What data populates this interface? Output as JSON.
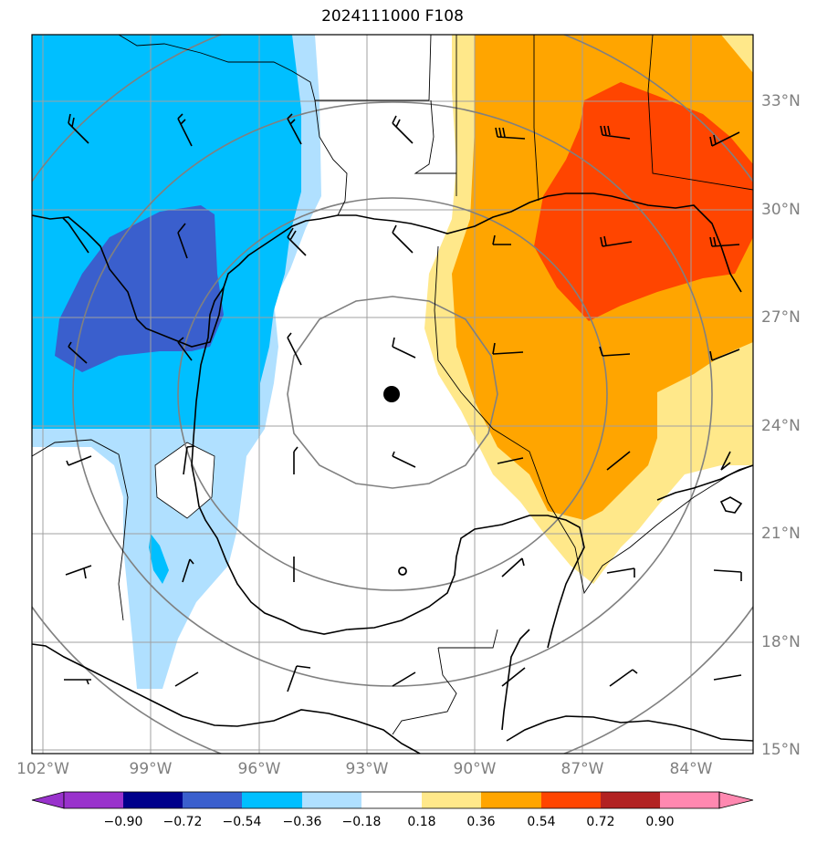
{
  "title": "2024111000 F108",
  "lon_labels": [
    "102°W",
    "99°W",
    "96°W",
    "93°W",
    "90°W",
    "87°W",
    "84°W"
  ],
  "lat_labels": [
    "33°N",
    "30°N",
    "27°N",
    "24°N",
    "21°N",
    "18°N",
    "15°N"
  ],
  "colorbar": {
    "labels": [
      "−0.90",
      "−0.72",
      "−0.54",
      "−0.36",
      "−0.18",
      "0.18",
      "0.36",
      "0.54",
      "0.72",
      "0.90"
    ],
    "colors": [
      "#9932cc",
      "#00008b",
      "#3a5fcd",
      "#00bfff",
      "#b0e0ff",
      "#ffffff",
      "#ffe88a",
      "#ffa500",
      "#ff4500",
      "#b22222",
      "#ff88b0"
    ]
  },
  "map": {
    "center_marker": "filled-circle",
    "low_marker": "open-circle",
    "range_rings": 4,
    "wind_barbs": 49
  }
}
